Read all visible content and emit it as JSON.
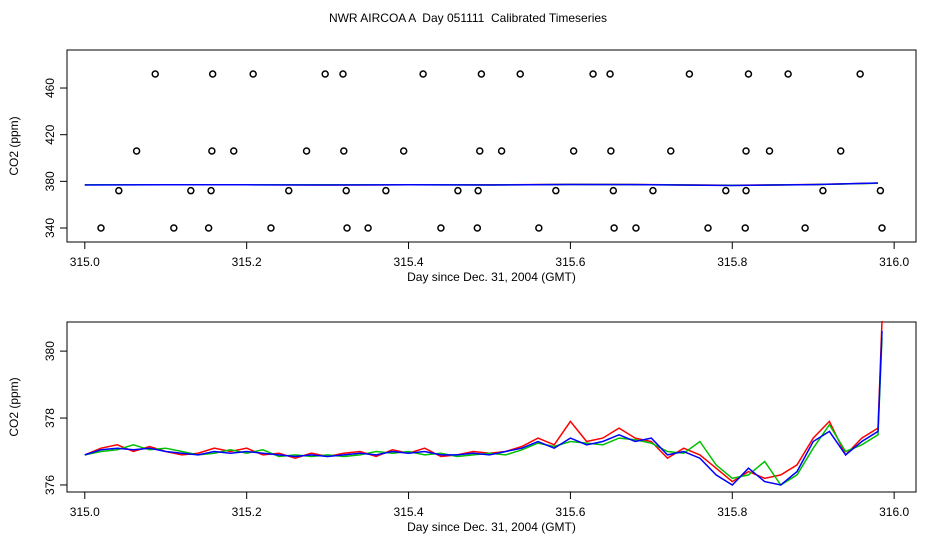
{
  "chart_data": [
    {
      "type": "scatter",
      "title": "NWR AIRCOA A  Day 051111  Calibrated Timeseries",
      "x_label": "Day since Dec. 31, 2004 (GMT)",
      "y_label": "CO2 (ppm)",
      "xlim": [
        314.978,
        316.027
      ],
      "ylim": [
        328,
        492.6
      ],
      "xticks": [
        {
          "value": 315,
          "label": "315.0"
        },
        315.2,
        315.4,
        315.6,
        315.8,
        {
          "value": 316,
          "label": "316.0"
        }
      ],
      "yticks": [
        340,
        380,
        420,
        460
      ],
      "point_color": "#000000",
      "x": [
        315.087,
        315.158,
        315.208,
        315.297,
        315.319,
        315.418,
        315.49,
        315.538,
        315.628,
        315.649,
        315.747,
        315.82,
        315.869,
        315.958,
        315.064,
        315.157,
        315.184,
        315.274,
        315.32,
        315.394,
        315.488,
        315.515,
        315.604,
        315.65,
        315.724,
        315.817,
        315.846,
        315.934,
        315.042,
        315.131,
        315.156,
        315.252,
        315.323,
        315.372,
        315.461,
        315.486,
        315.582,
        315.653,
        315.702,
        315.792,
        315.817,
        315.912,
        315.983,
        315.02,
        315.11,
        315.153,
        315.23,
        315.324,
        315.35,
        315.44,
        315.485,
        315.561,
        315.654,
        315.681,
        315.77,
        315.816,
        315.89,
        315.985
      ],
      "values": [
        472,
        472,
        472,
        472,
        472,
        472,
        472,
        472,
        472,
        472,
        472,
        472,
        472,
        472,
        406,
        406,
        406,
        406,
        406,
        406,
        406,
        406,
        406,
        406,
        406,
        406,
        406,
        406,
        372,
        372,
        372,
        372,
        372,
        372,
        372,
        372,
        372,
        372,
        372,
        372,
        372,
        372,
        372,
        340,
        340,
        340,
        340,
        340,
        340,
        340,
        340,
        340,
        340,
        340,
        340,
        340,
        340,
        340
      ],
      "series": [
        {
          "color": "#ff0000",
          "x": [
            315.0,
            315.1,
            315.2,
            315.3,
            315.4,
            315.5,
            315.6,
            315.7,
            315.8,
            315.9,
            315.98
          ],
          "values": [
            377,
            377,
            377.1,
            376.9,
            377,
            377,
            377.4,
            377.2,
            376.6,
            377.3,
            378.5
          ]
        },
        {
          "color": "#00c000",
          "x": [
            315.0,
            315.1,
            315.2,
            315.3,
            315.4,
            315.5,
            315.6,
            315.7,
            315.8,
            315.9,
            315.98
          ],
          "values": [
            377,
            377.1,
            377,
            377,
            377,
            376.9,
            377.3,
            377.1,
            376.5,
            377.2,
            378.3
          ]
        },
        {
          "color": "#0000ff",
          "x": [
            315.0,
            315.1,
            315.2,
            315.3,
            315.4,
            315.5,
            315.6,
            315.7,
            315.8,
            315.9,
            315.98
          ],
          "values": [
            376.9,
            377,
            377,
            376.9,
            377,
            376.9,
            377.3,
            377.1,
            376.4,
            377.2,
            378.6
          ]
        }
      ]
    },
    {
      "type": "line",
      "x_label": "Day since Dec. 31, 2004 (GMT)",
      "y_label": "CO2 (ppm)",
      "xlim": [
        314.978,
        316.027
      ],
      "ylim": [
        375.79,
        380.87
      ],
      "xticks": [
        {
          "value": 315,
          "label": "315.0"
        },
        315.2,
        315.4,
        315.6,
        315.8,
        {
          "value": 316,
          "label": "316.0"
        }
      ],
      "yticks": [
        376,
        378,
        380
      ],
      "x": [
        315.0,
        315.02,
        315.04,
        315.06,
        315.08,
        315.1,
        315.12,
        315.14,
        315.16,
        315.18,
        315.2,
        315.22,
        315.24,
        315.26,
        315.28,
        315.3,
        315.32,
        315.34,
        315.36,
        315.38,
        315.4,
        315.42,
        315.44,
        315.46,
        315.48,
        315.5,
        315.52,
        315.54,
        315.56,
        315.58,
        315.6,
        315.62,
        315.64,
        315.66,
        315.68,
        315.7,
        315.72,
        315.74,
        315.76,
        315.78,
        315.8,
        315.82,
        315.84,
        315.86,
        315.88,
        315.9,
        315.92,
        315.94,
        315.96,
        315.98,
        315.985
      ],
      "series": [
        {
          "color": "#ff0000",
          "values": [
            376.9,
            377.1,
            377.2,
            377.0,
            377.15,
            377.0,
            376.9,
            376.95,
            377.1,
            377.0,
            377.1,
            376.9,
            376.95,
            376.8,
            376.95,
            376.85,
            376.95,
            377.0,
            376.85,
            377.05,
            376.95,
            377.1,
            376.85,
            376.9,
            377.0,
            376.95,
            377.0,
            377.15,
            377.4,
            377.2,
            377.9,
            377.3,
            377.4,
            377.7,
            377.4,
            377.3,
            376.8,
            377.1,
            376.9,
            376.5,
            376.1,
            376.4,
            376.2,
            376.3,
            376.6,
            377.4,
            377.9,
            376.9,
            377.4,
            377.7,
            380.9
          ]
        },
        {
          "color": "#00c000",
          "values": [
            376.9,
            377.0,
            377.05,
            377.2,
            377.05,
            377.1,
            377.0,
            376.9,
            376.95,
            377.05,
            376.95,
            377.05,
            376.85,
            376.9,
            376.85,
            376.9,
            376.85,
            376.9,
            377.0,
            376.95,
            377.0,
            376.9,
            376.95,
            376.85,
            376.9,
            376.95,
            376.9,
            377.05,
            377.25,
            377.15,
            377.3,
            377.25,
            377.2,
            377.4,
            377.35,
            377.25,
            377.0,
            376.95,
            377.3,
            376.6,
            376.2,
            376.3,
            376.7,
            376.0,
            376.3,
            377.1,
            377.8,
            377.0,
            377.2,
            377.5,
            380.4
          ]
        },
        {
          "color": "#0000ff",
          "values": [
            376.9,
            377.05,
            377.1,
            377.05,
            377.1,
            377.0,
            376.95,
            376.9,
            377.0,
            376.95,
            377.0,
            376.95,
            376.9,
            376.85,
            376.9,
            376.85,
            376.9,
            376.95,
            376.9,
            377.0,
            376.95,
            377.0,
            376.9,
            376.9,
            376.95,
            376.9,
            377.0,
            377.1,
            377.3,
            377.1,
            377.4,
            377.2,
            377.3,
            377.5,
            377.3,
            377.4,
            376.9,
            377.0,
            376.8,
            376.3,
            376.0,
            376.5,
            376.1,
            376.0,
            376.4,
            377.3,
            377.6,
            376.9,
            377.3,
            377.6,
            380.6
          ]
        }
      ]
    }
  ]
}
